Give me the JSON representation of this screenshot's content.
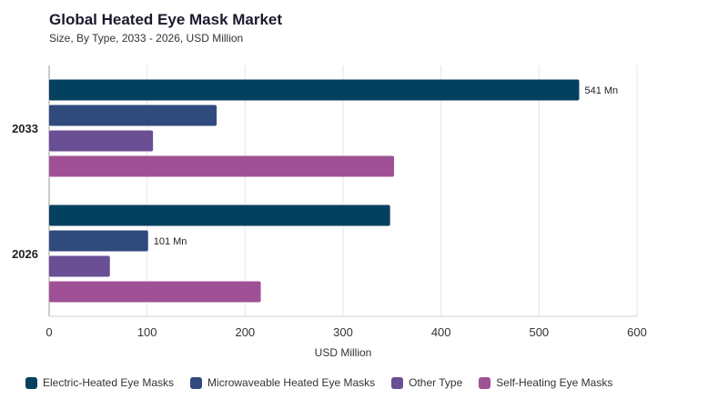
{
  "chart_data": {
    "type": "bar",
    "orientation": "horizontal",
    "title": "Global Heated Eye Mask Market",
    "subtitle": "Size, By Type, 2033 - 2026, USD Million",
    "xlabel": "USD Million",
    "ylabel": "",
    "xlim": [
      0,
      600
    ],
    "xticks": [
      "0",
      "100",
      "200",
      "300",
      "400",
      "500",
      "600"
    ],
    "categories": [
      "2033",
      "2026"
    ],
    "grid": true,
    "legend_position": "bottom",
    "series": [
      {
        "name": "Electric-Heated Eye Masks",
        "color": "#04415f",
        "values": [
          541,
          348
        ]
      },
      {
        "name": "Microwaveable Heated Eye Masks",
        "color": "#304a7e",
        "values": [
          171,
          101
        ]
      },
      {
        "name": "Other Type",
        "color": "#6a4f94",
        "values": [
          106,
          62
        ]
      },
      {
        "name": "Self-Heating Eye Masks",
        "color": "#a05196",
        "values": [
          352,
          216
        ]
      }
    ],
    "annotations": [
      {
        "category": "2033",
        "series": "Electric-Heated Eye Masks",
        "text": "541 Mn"
      },
      {
        "category": "2026",
        "series": "Microwaveable Heated Eye Masks",
        "text": "101 Mn"
      }
    ]
  }
}
